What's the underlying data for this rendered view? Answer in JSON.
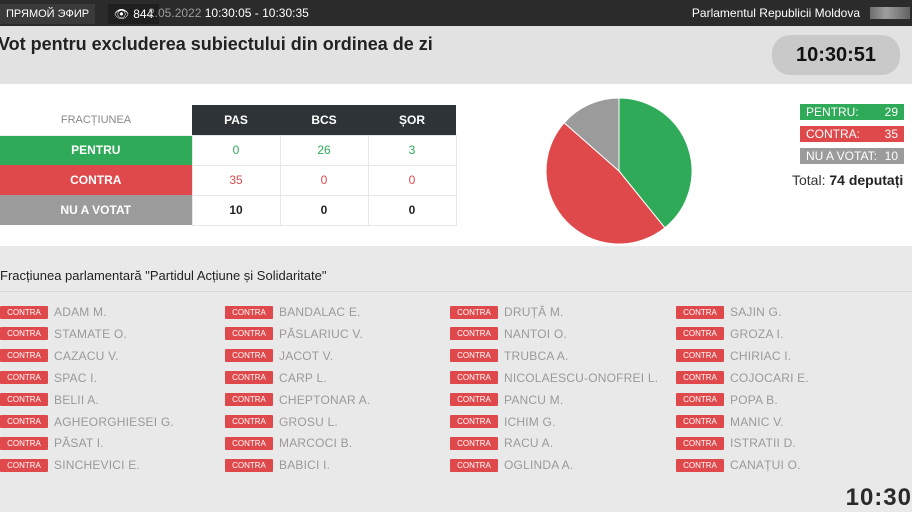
{
  "topbar": {
    "live_label": "ПРЯМОЙ ЭФИР",
    "views": "844",
    "date_partial": "2.05.2022",
    "time_range": "10:30:05 - 10:30:35",
    "parliament": "Parlamentul Republicii Moldova"
  },
  "header": {
    "title": "Vot pentru excluderea subiectului din ordinea de zi",
    "clock": "10:30:51"
  },
  "table": {
    "header_fraction": "FRACȚIUNEA",
    "parties": [
      "PAS",
      "BCS",
      "ȘOR"
    ],
    "rows": [
      {
        "label": "PENTRU",
        "values": [
          "0",
          "26",
          "3"
        ]
      },
      {
        "label": "CONTRA",
        "values": [
          "35",
          "0",
          "0"
        ]
      },
      {
        "label": "NU A VOTAT",
        "values": [
          "10",
          "0",
          "0"
        ]
      }
    ]
  },
  "chart_data": {
    "type": "pie",
    "categories": [
      "PENTRU",
      "CONTRA",
      "NU A VOTAT"
    ],
    "values": [
      29,
      35,
      10
    ],
    "colors": [
      "#2eaa58",
      "#e0494c",
      "#9b9b9b"
    ]
  },
  "legend": {
    "pentru_label": "PENTRU:",
    "pentru_value": "29",
    "contra_label": "CONTRA:",
    "contra_value": "35",
    "nu_label": "NU A VOTAT:",
    "nu_value": "10"
  },
  "total": {
    "label": "Total:",
    "value": "74 deputați"
  },
  "faction": {
    "title": "Fracțiunea parlamentară \"Partidul Acțiune și Solidaritate\"",
    "badge": "CONTRA",
    "columns": [
      [
        "ADAM M.",
        "STAMATE O.",
        "CAZACU V.",
        "SPAC I.",
        "BELII A.",
        "AGHEORGHIESEI G.",
        "PĂSAT I.",
        "SINCHEVICI E."
      ],
      [
        "BANDALAC E.",
        "PĂSLARIUC V.",
        "JACOT V.",
        "CARP L.",
        "CHEPTONAR A.",
        "GROSU L.",
        "MARCOCI B.",
        "BABICI I."
      ],
      [
        "DRUȚĂ M.",
        "NANTOI O.",
        "TRUBCA A.",
        "NICOLAESCU-ONOFREI L.",
        "PANCU M.",
        "ICHIM G.",
        "RACU A.",
        "OGLINDA A."
      ],
      [
        "SAJIN G.",
        "GROZA I.",
        "CHIRIAC I.",
        "COJOCARI E.",
        "POPA B.",
        "MANIC V.",
        "ISTRATII D.",
        "CANAȚUI O."
      ]
    ]
  },
  "bottom_clock": "10:30"
}
